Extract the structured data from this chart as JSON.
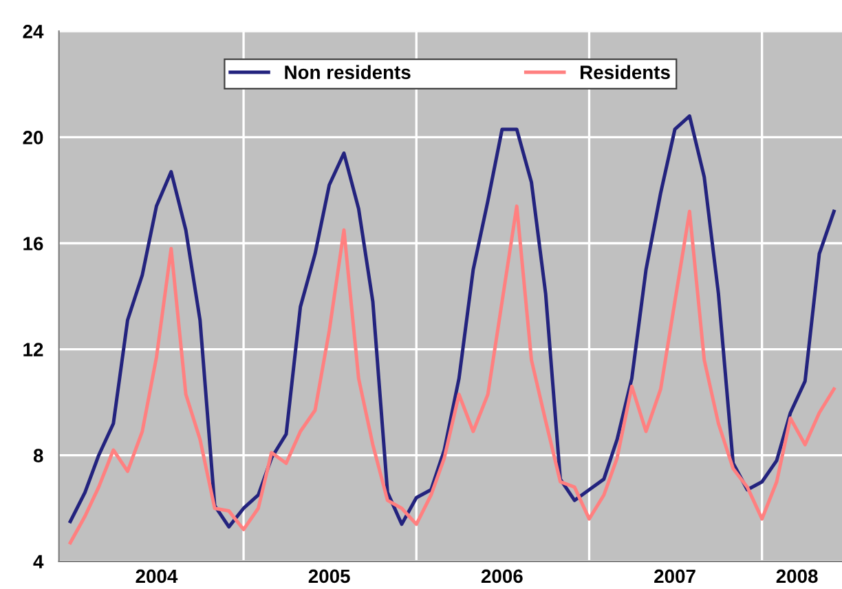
{
  "chart_data": {
    "type": "line",
    "x": [
      "2004-01",
      "2004-02",
      "2004-03",
      "2004-04",
      "2004-05",
      "2004-06",
      "2004-07",
      "2004-08",
      "2004-09",
      "2004-10",
      "2004-11",
      "2004-12",
      "2005-01",
      "2005-02",
      "2005-03",
      "2005-04",
      "2005-05",
      "2005-06",
      "2005-07",
      "2005-08",
      "2005-09",
      "2005-10",
      "2005-11",
      "2005-12",
      "2006-01",
      "2006-02",
      "2006-03",
      "2006-04",
      "2006-05",
      "2006-06",
      "2006-07",
      "2006-08",
      "2006-09",
      "2006-10",
      "2006-11",
      "2006-12",
      "2007-01",
      "2007-02",
      "2007-03",
      "2007-04",
      "2007-05",
      "2007-06",
      "2007-07",
      "2007-08",
      "2007-09",
      "2007-10",
      "2007-11",
      "2007-12",
      "2008-01",
      "2008-02",
      "2008-03",
      "2008-04",
      "2008-05",
      "2008-06"
    ],
    "series": [
      {
        "name": "Non residents",
        "color": "#23237e",
        "values": [
          5.5,
          6.6,
          8.0,
          9.2,
          13.1,
          14.8,
          17.4,
          18.7,
          16.5,
          13.1,
          6.1,
          5.3,
          6.0,
          6.5,
          7.9,
          8.8,
          13.6,
          15.6,
          18.2,
          19.4,
          17.3,
          13.8,
          6.6,
          5.4,
          6.4,
          6.7,
          8.2,
          10.9,
          15.0,
          17.6,
          20.3,
          20.3,
          18.3,
          14.1,
          7.1,
          6.3,
          6.7,
          7.1,
          8.6,
          10.9,
          15.0,
          17.9,
          20.3,
          20.8,
          18.5,
          14.1,
          7.7,
          6.7,
          7.0,
          7.8,
          9.6,
          10.8,
          15.6,
          17.2
        ]
      },
      {
        "name": "Residents",
        "color": "#ff8080",
        "values": [
          4.7,
          5.7,
          6.8,
          8.2,
          7.4,
          8.9,
          11.7,
          15.8,
          10.3,
          8.6,
          6.0,
          5.9,
          5.2,
          6.0,
          8.1,
          7.7,
          8.9,
          9.7,
          12.7,
          16.5,
          10.9,
          8.4,
          6.3,
          6.0,
          5.4,
          6.5,
          7.9,
          10.3,
          8.9,
          10.3,
          13.8,
          17.4,
          11.6,
          9.3,
          7.0,
          6.8,
          5.6,
          6.5,
          7.9,
          10.6,
          8.9,
          10.5,
          13.8,
          17.2,
          11.6,
          9.2,
          7.5,
          6.8,
          5.6,
          7.0,
          9.4,
          8.4,
          9.6,
          10.5
        ]
      }
    ],
    "xlim": [
      "2003-12-08",
      "2008-06-18"
    ],
    "xticks": [
      {
        "value": "2005-01-01",
        "label": null
      },
      {
        "value": "2006-01-01",
        "label": null
      },
      {
        "value": "2007-01-01",
        "label": null
      },
      {
        "value": "2008-01-01",
        "label": null
      },
      {
        "value": "2004-07-01",
        "label": "2004"
      },
      {
        "value": "2005-07-01",
        "label": "2005"
      },
      {
        "value": "2006-07-01",
        "label": "2006"
      },
      {
        "value": "2007-07-01",
        "label": "2007"
      },
      {
        "value": "2008-03-15",
        "label": "2008"
      }
    ],
    "ylim": [
      4,
      24
    ],
    "yticks": [
      4,
      8,
      12,
      16,
      20,
      24
    ],
    "grid": true,
    "legend": "top",
    "marker": "none",
    "line_style": "solid"
  }
}
